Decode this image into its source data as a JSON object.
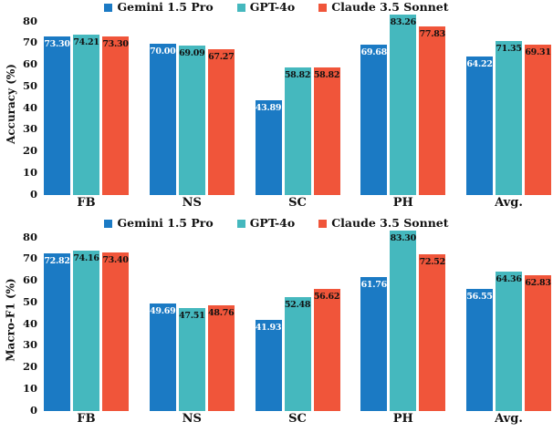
{
  "figure": {
    "background": "#ffffff",
    "series_colors": {
      "gemini": "#1b7ac4",
      "gpt4o": "#45b8be",
      "claude": "#f0553a"
    }
  },
  "chart_data": [
    {
      "type": "bar",
      "title": "",
      "xlabel": "",
      "ylabel": "Accuracy (%)",
      "categories": [
        "FB",
        "NS",
        "SC",
        "PH",
        "Avg."
      ],
      "series": [
        {
          "name": "Gemini 1.5 Pro",
          "color": "#1b7ac4",
          "value_label_color": "#ffffff",
          "values": [
            73.3,
            70.0,
            43.89,
            69.68,
            64.22
          ]
        },
        {
          "name": "GPT-4o",
          "color": "#45b8be",
          "value_label_color": "#111111",
          "values": [
            74.21,
            69.09,
            58.82,
            83.26,
            71.35
          ]
        },
        {
          "name": "Claude 3.5 Sonnet",
          "color": "#f0553a",
          "value_label_color": "#111111",
          "values": [
            73.3,
            67.27,
            58.82,
            77.83,
            69.31
          ]
        }
      ],
      "ylim": [
        0,
        80
      ],
      "yticks": [
        0,
        10,
        20,
        30,
        40,
        50,
        60,
        70,
        80
      ],
      "legend_position": "top-center",
      "grid": false,
      "value_labels": true,
      "value_label_decimals": 2
    },
    {
      "type": "bar",
      "title": "",
      "xlabel": "",
      "ylabel": "Macro-F1 (%)",
      "categories": [
        "FB",
        "NS",
        "SC",
        "PH",
        "Avg."
      ],
      "series": [
        {
          "name": "Gemini 1.5 Pro",
          "color": "#1b7ac4",
          "value_label_color": "#ffffff",
          "values": [
            72.82,
            49.69,
            41.93,
            61.76,
            56.55
          ]
        },
        {
          "name": "GPT-4o",
          "color": "#45b8be",
          "value_label_color": "#111111",
          "values": [
            74.16,
            47.51,
            52.48,
            83.3,
            64.36
          ]
        },
        {
          "name": "Claude 3.5 Sonnet",
          "color": "#f0553a",
          "value_label_color": "#111111",
          "values": [
            73.4,
            48.76,
            56.62,
            72.52,
            62.83
          ]
        }
      ],
      "ylim": [
        0,
        80
      ],
      "yticks": [
        0,
        10,
        20,
        30,
        40,
        50,
        60,
        70,
        80
      ],
      "legend_position": "top-center",
      "grid": false,
      "value_labels": true,
      "value_label_decimals": 2
    }
  ]
}
